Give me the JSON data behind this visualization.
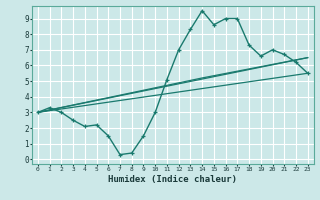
{
  "title": "",
  "xlabel": "Humidex (Indice chaleur)",
  "ylabel": "",
  "background_color": "#cce8e8",
  "grid_color": "#ffffff",
  "line_color": "#1a7a6e",
  "xlim": [
    -0.5,
    23.5
  ],
  "ylim": [
    -0.3,
    9.8
  ],
  "xticks": [
    0,
    1,
    2,
    3,
    4,
    5,
    6,
    7,
    8,
    9,
    10,
    11,
    12,
    13,
    14,
    15,
    16,
    17,
    18,
    19,
    20,
    21,
    22,
    23
  ],
  "yticks": [
    0,
    1,
    2,
    3,
    4,
    5,
    6,
    7,
    8,
    9
  ],
  "main_x": [
    0,
    1,
    2,
    3,
    4,
    5,
    6,
    7,
    8,
    9,
    10,
    11,
    12,
    13,
    14,
    15,
    16,
    17,
    18,
    19,
    20,
    21,
    22,
    23
  ],
  "main_y": [
    3.0,
    3.3,
    3.0,
    2.5,
    2.1,
    2.2,
    1.5,
    0.3,
    0.4,
    1.5,
    3.0,
    5.1,
    7.0,
    8.3,
    9.5,
    8.6,
    9.0,
    9.0,
    7.3,
    6.6,
    7.0,
    6.7,
    6.2,
    5.5
  ],
  "line2_x": [
    0,
    23
  ],
  "line2_y": [
    3.0,
    6.5
  ],
  "line3_x": [
    0,
    23
  ],
  "line3_y": [
    3.0,
    5.5
  ],
  "line4_x": [
    0,
    14,
    23
  ],
  "line4_y": [
    3.0,
    5.2,
    6.5
  ]
}
